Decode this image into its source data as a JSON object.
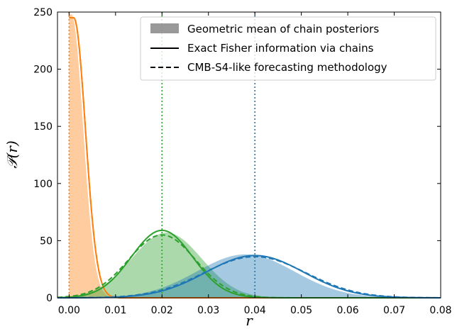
{
  "chart_data": {
    "type": "area",
    "xlabel": "r",
    "ylabel": "𝒫(r)",
    "xlim": [
      -0.0025,
      0.08
    ],
    "ylim": [
      0,
      250
    ],
    "x_ticks": [
      "0.00",
      "0.01",
      "0.02",
      "0.03",
      "0.04",
      "0.05",
      "0.06",
      "0.07",
      "0.08"
    ],
    "y_ticks": [
      "0",
      "50",
      "100",
      "150",
      "200",
      "250"
    ],
    "grid": false,
    "legend_position": "top-right",
    "legend": [
      {
        "label": "Geometric mean of chain posteriors",
        "style": "fill"
      },
      {
        "label": "Exact Fisher information via chains",
        "style": "solid"
      },
      {
        "label": "CMB-S4-like forecasting methodology",
        "style": "dashed"
      }
    ],
    "series": [
      {
        "color": "#ff7f0e",
        "true_r": 0.0,
        "filled_posterior": {
          "type": "half-gaussian",
          "mu": 0.0005,
          "sigma": 0.0025,
          "peak": 248
        },
        "fisher_exact": {
          "type": "half-gaussian",
          "mu": 0.001,
          "sigma": 0.0025,
          "peak": 245
        },
        "forecast": {
          "type": "half-gaussian",
          "mu": 0.001,
          "sigma": 0.0025,
          "peak": 245
        }
      },
      {
        "color": "#2ca02c",
        "true_r": 0.02,
        "filled_posterior": {
          "type": "gaussian",
          "mu": 0.021,
          "sigma": 0.0075,
          "peak": 57
        },
        "fisher_exact": {
          "type": "gaussian",
          "mu": 0.02,
          "sigma": 0.0066,
          "peak": 59
        },
        "forecast": {
          "type": "gaussian",
          "mu": 0.02,
          "sigma": 0.0072,
          "peak": 55
        }
      },
      {
        "color": "#1f77b4",
        "true_r": 0.04,
        "filled_posterior": {
          "type": "gaussian",
          "mu": 0.038,
          "sigma": 0.0105,
          "peak": 38
        },
        "fisher_exact": {
          "type": "gaussian",
          "mu": 0.04,
          "sigma": 0.0105,
          "peak": 37
        },
        "forecast": {
          "type": "gaussian",
          "mu": 0.04,
          "sigma": 0.011,
          "peak": 36
        }
      }
    ]
  }
}
